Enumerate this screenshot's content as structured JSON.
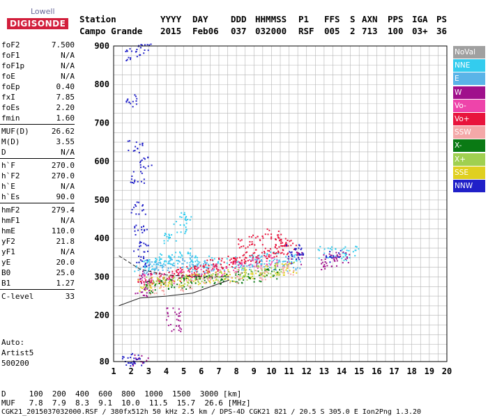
{
  "logo": {
    "line1": "Lowell",
    "line2": "DIGISONDE"
  },
  "header": {
    "labels": [
      "Station",
      "YYYY",
      "DAY",
      "DDD",
      "HHMMSS",
      "P1",
      "FFS",
      "S",
      "AXN",
      "PPS",
      "IGA",
      "PS"
    ],
    "values": [
      "Campo Grande",
      "2015",
      "Feb06",
      "037",
      "032000",
      "RSF",
      "005",
      "2",
      "713",
      "100",
      "03+",
      "36"
    ]
  },
  "params": {
    "group1": [
      [
        "foF2",
        "7.500"
      ],
      [
        "foF1",
        "N/A"
      ],
      [
        "foF1p",
        "N/A"
      ],
      [
        "foE",
        "N/A"
      ],
      [
        "foEp",
        "0.40"
      ],
      [
        "fxI",
        "7.85"
      ],
      [
        "foEs",
        "2.20"
      ],
      [
        "fmin",
        "1.60"
      ]
    ],
    "group2": [
      [
        "MUF(D)",
        "26.62"
      ],
      [
        "M(D)",
        "3.55"
      ],
      [
        "D",
        "N/A"
      ]
    ],
    "group3": [
      [
        "h`F",
        "270.0"
      ],
      [
        "h`F2",
        "270.0"
      ],
      [
        "h`E",
        "N/A"
      ],
      [
        "h`Es",
        "90.0"
      ]
    ],
    "group4": [
      [
        "hmF2",
        "279.4"
      ],
      [
        "hmF1",
        "N/A"
      ],
      [
        "hmE",
        "110.0"
      ],
      [
        "yF2",
        "21.8"
      ],
      [
        "yF1",
        "N/A"
      ],
      [
        "yE",
        "20.0"
      ],
      [
        "B0",
        "25.0"
      ],
      [
        "B1",
        "1.27"
      ]
    ],
    "group5": [
      [
        "C-level",
        "33"
      ]
    ]
  },
  "auto": {
    "line1": "Auto:",
    "line2": "Artist5",
    "line3": "500200"
  },
  "legend": [
    {
      "label": "NoVal",
      "color": "#a0a0a0"
    },
    {
      "label": "NNE",
      "color": "#33ccee"
    },
    {
      "label": "E",
      "color": "#5ab4e8"
    },
    {
      "label": "W",
      "color": "#a0108c"
    },
    {
      "label": "Vo-",
      "color": "#ee44aa"
    },
    {
      "label": "Vo+",
      "color": "#e8143c"
    },
    {
      "label": "SSW",
      "color": "#f4a8a8"
    },
    {
      "label": "X-",
      "color": "#0a7a14"
    },
    {
      "label": "X+",
      "color": "#a0d050"
    },
    {
      "label": "SSE",
      "color": "#e0d020"
    },
    {
      "label": "NNW",
      "color": "#2020c8"
    }
  ],
  "footer": {
    "line1": "D     100  200  400  600  800  1000  1500  3000 [km]",
    "line2": "MUF   7.8  7.9  8.3  9.1  10.0  11.5  15.7  26.6 [MHz]",
    "line3": "CGK21_2015037032000.RSF / 380fx512h 50 kHz 2.5 km / DPS-4D CGK21 821 / 20.5 S 305.0 E Ion2Png 1.3.20"
  },
  "chart_data": {
    "type": "scatter",
    "xlabel": "",
    "ylabel": "",
    "xlim": [
      1,
      20
    ],
    "ylim": [
      80,
      900
    ],
    "x_ticks": [
      1,
      2,
      3,
      4,
      5,
      6,
      7,
      8,
      9,
      10,
      11,
      12,
      13,
      14,
      15,
      16,
      17,
      18,
      19,
      20
    ],
    "y_ticks": [
      80,
      200,
      300,
      400,
      500,
      600,
      700,
      800,
      900
    ],
    "grid": true,
    "series": [
      {
        "name": "NNE",
        "color": "#33ccee",
        "points": [
          [
            2.6,
            330
          ],
          [
            3.0,
            335
          ],
          [
            3.5,
            340
          ],
          [
            4.0,
            345
          ],
          [
            4.5,
            350
          ],
          [
            5.0,
            360
          ],
          [
            5.5,
            330
          ],
          [
            6.0,
            340
          ],
          [
            7.0,
            335
          ],
          [
            8.0,
            340
          ],
          [
            9.0,
            345
          ],
          [
            10.0,
            350
          ],
          [
            11.0,
            345
          ],
          [
            13.0,
            365
          ],
          [
            14.0,
            360
          ],
          [
            14.5,
            365
          ],
          [
            4.8,
            430
          ],
          [
            5.0,
            460
          ],
          [
            4.2,
            400
          ]
        ]
      },
      {
        "name": "E",
        "color": "#5ab4e8",
        "points": [
          [
            2.6,
            320
          ],
          [
            3.2,
            325
          ],
          [
            3.8,
            330
          ],
          [
            4.5,
            335
          ],
          [
            5.2,
            340
          ],
          [
            5.8,
            320
          ],
          [
            6.5,
            330
          ],
          [
            8.5,
            335
          ],
          [
            9.5,
            340
          ],
          [
            10.5,
            335
          ],
          [
            11.2,
            330
          ]
        ]
      },
      {
        "name": "Vo+",
        "color": "#e8143c",
        "points": [
          [
            2.8,
            290
          ],
          [
            3.5,
            295
          ],
          [
            4.0,
            300
          ],
          [
            4.5,
            305
          ],
          [
            5.0,
            310
          ],
          [
            5.5,
            315
          ],
          [
            6.0,
            320
          ],
          [
            6.5,
            330
          ],
          [
            7.0,
            335
          ],
          [
            7.5,
            340
          ],
          [
            8.0,
            345
          ],
          [
            8.5,
            350
          ],
          [
            9.0,
            355
          ],
          [
            9.5,
            360
          ],
          [
            10.0,
            365
          ],
          [
            10.5,
            375
          ],
          [
            11.0,
            380
          ],
          [
            8.5,
            390
          ],
          [
            9.2,
            400
          ],
          [
            10.1,
            410
          ],
          [
            10.6,
            395
          ]
        ]
      },
      {
        "name": "Vo-",
        "color": "#ee44aa",
        "points": [
          [
            3.0,
            295
          ],
          [
            4.0,
            300
          ],
          [
            5.0,
            305
          ],
          [
            6.0,
            310
          ],
          [
            7.0,
            320
          ],
          [
            8.0,
            330
          ],
          [
            9.0,
            340
          ],
          [
            10.0,
            345
          ]
        ]
      },
      {
        "name": "SSE",
        "color": "#e0d020",
        "points": [
          [
            2.7,
            280
          ],
          [
            3.5,
            285
          ],
          [
            4.5,
            290
          ],
          [
            5.5,
            295
          ],
          [
            6.5,
            300
          ],
          [
            7.5,
            305
          ],
          [
            8.5,
            310
          ],
          [
            9.5,
            315
          ],
          [
            10.5,
            320
          ],
          [
            11.0,
            325
          ]
        ]
      },
      {
        "name": "X-",
        "color": "#0a7a14",
        "points": [
          [
            3.0,
            275
          ],
          [
            4.0,
            280
          ],
          [
            5.0,
            285
          ],
          [
            6.0,
            290
          ],
          [
            7.0,
            295
          ],
          [
            8.0,
            300
          ],
          [
            9.0,
            305
          ],
          [
            10.0,
            310
          ]
        ]
      },
      {
        "name": "X+",
        "color": "#a0d050",
        "points": [
          [
            3.2,
            285
          ],
          [
            4.2,
            290
          ],
          [
            5.2,
            295
          ],
          [
            6.2,
            300
          ],
          [
            7.2,
            305
          ],
          [
            8.2,
            310
          ],
          [
            9.2,
            318
          ],
          [
            10.2,
            322
          ]
        ]
      },
      {
        "name": "SSW",
        "color": "#f4a8a8",
        "points": [
          [
            3.5,
            270
          ],
          [
            5.0,
            280
          ],
          [
            6.5,
            290
          ],
          [
            8.0,
            300
          ],
          [
            9.5,
            310
          ],
          [
            11.0,
            320
          ]
        ]
      },
      {
        "name": "W",
        "color": "#a0108c",
        "points": [
          [
            2.5,
            85
          ],
          [
            2.6,
            260
          ],
          [
            2.7,
            300
          ],
          [
            4.4,
            175
          ],
          [
            4.4,
            205
          ],
          [
            13.3,
            345
          ],
          [
            14.0,
            350
          ],
          [
            13.0,
            335
          ],
          [
            11.3,
            350
          ]
        ]
      },
      {
        "name": "NNW",
        "color": "#2020c8",
        "points": [
          [
            2.0,
            880
          ],
          [
            2.1,
            760
          ],
          [
            2.2,
            640
          ],
          [
            2.3,
            560
          ],
          [
            2.4,
            480
          ],
          [
            2.5,
            420
          ],
          [
            2.55,
            380
          ],
          [
            2.6,
            340
          ],
          [
            2.7,
            600
          ],
          [
            2.75,
            890
          ],
          [
            11.2,
            370
          ],
          [
            11.4,
            360
          ],
          [
            13.5,
            355
          ],
          [
            1.9,
            84
          ],
          [
            2.3,
            86
          ]
        ]
      }
    ],
    "traces": [
      {
        "name": "trace-upper",
        "points": [
          [
            1.3,
            355
          ],
          [
            2.5,
            320
          ],
          [
            4.0,
            305
          ],
          [
            6.0,
            300
          ],
          [
            7.6,
            300
          ]
        ]
      },
      {
        "name": "trace-lower",
        "points": [
          [
            1.3,
            225
          ],
          [
            2.5,
            245
          ],
          [
            4.0,
            250
          ],
          [
            5.5,
            258
          ],
          [
            7.6,
            292
          ]
        ]
      }
    ]
  }
}
